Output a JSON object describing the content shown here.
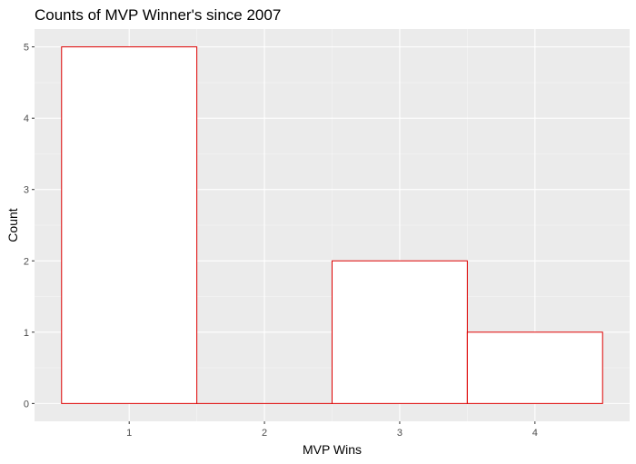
{
  "chart_data": {
    "type": "bar",
    "title": "Counts of MVP Winner's since 2007",
    "xlabel": "MVP Wins",
    "ylabel": "Count",
    "categories": [
      "1",
      "2",
      "3",
      "4"
    ],
    "x": [
      1,
      2,
      3,
      4
    ],
    "values": [
      5,
      0,
      2,
      1
    ],
    "xlim": [
      0.3,
      4.7
    ],
    "ylim": [
      -0.25,
      5.25
    ],
    "yticks": [
      0,
      1,
      2,
      3,
      4,
      5
    ],
    "bin_width": 1,
    "grid": true,
    "legend": "none",
    "colors": {
      "panel": "#EBEBEB",
      "bar_fill": "#FFFFFF",
      "bar_outline": "#DD0000"
    }
  }
}
